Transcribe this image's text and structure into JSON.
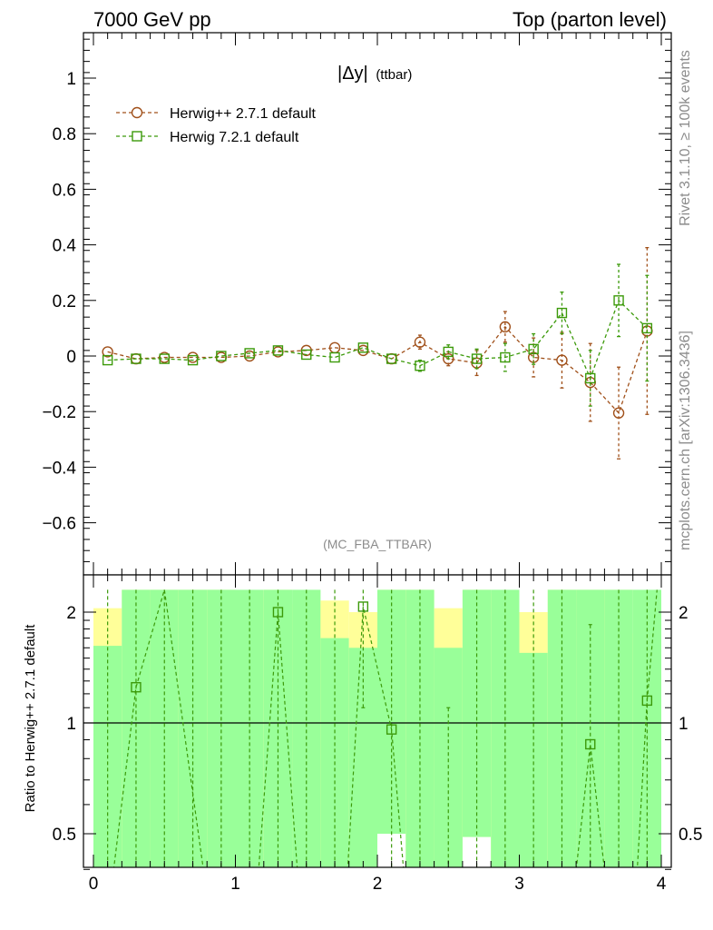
{
  "header": {
    "left": "7000 GeV pp",
    "right": "Top (parton level)"
  },
  "side": {
    "upper": "Rivet 3.1.10, ≥ 100k events",
    "lower": "mcplots.cern.ch [arXiv:1306.3436]"
  },
  "chart_data": [
    {
      "type": "scatter",
      "title_main": "|Δy|",
      "title_sub": "(ttbar)",
      "analysis_label": "(MC_FBA_TTBAR)",
      "xlim": [
        0,
        4
      ],
      "ylim": [
        -0.75,
        1.16
      ],
      "yticks": [
        -0.6,
        -0.4,
        -0.2,
        0,
        0.2,
        0.4,
        0.6,
        0.8,
        1
      ],
      "ytick_labels": [
        "−0.6",
        "−0.4",
        "−0.2",
        "0",
        "0.2",
        "0.4",
        "0.6",
        "0.8",
        "1"
      ],
      "legend_position": "top-left",
      "series": [
        {
          "name": "Herwig++ 2.7.1 default",
          "color": "#a0501a",
          "marker": "circle",
          "x": [
            0.1,
            0.3,
            0.5,
            0.7,
            0.9,
            1.1,
            1.3,
            1.5,
            1.7,
            1.9,
            2.1,
            2.3,
            2.5,
            2.7,
            2.9,
            3.1,
            3.3,
            3.5,
            3.7,
            3.9
          ],
          "y": [
            0.015,
            -0.01,
            -0.005,
            -0.005,
            -0.005,
            0,
            0.015,
            0.02,
            0.03,
            0.02,
            -0.01,
            0.05,
            -0.01,
            -0.025,
            0.105,
            -0.005,
            -0.015,
            -0.095,
            -0.205,
            0.09
          ],
          "err": [
            0.008,
            0.008,
            0.008,
            0.008,
            0.008,
            0.008,
            0.01,
            0.01,
            0.012,
            0.012,
            0.015,
            0.025,
            0.025,
            0.045,
            0.055,
            0.07,
            0.1,
            0.14,
            0.165,
            0.3
          ]
        },
        {
          "name": "Herwig 7.2.1 default",
          "color": "#3c9a0a",
          "marker": "square",
          "x": [
            0.1,
            0.3,
            0.5,
            0.7,
            0.9,
            1.1,
            1.3,
            1.5,
            1.7,
            1.9,
            2.1,
            2.3,
            2.5,
            2.7,
            2.9,
            3.1,
            3.3,
            3.5,
            3.7,
            3.9
          ],
          "y": [
            -0.015,
            -0.01,
            -0.01,
            -0.015,
            0,
            0.01,
            0.02,
            0.005,
            -0.005,
            0.03,
            -0.01,
            -0.035,
            0.015,
            -0.01,
            -0.005,
            0.025,
            0.155,
            -0.08,
            0.2,
            0.1
          ],
          "err": [
            0.008,
            0.008,
            0.008,
            0.008,
            0.008,
            0.008,
            0.01,
            0.01,
            0.012,
            0.012,
            0.015,
            0.02,
            0.025,
            0.035,
            0.05,
            0.055,
            0.075,
            0.1,
            0.13,
            0.19
          ]
        }
      ]
    },
    {
      "type": "scatter",
      "ylabel": "Ratio to Herwig++ 2.7.1 default",
      "ylim": [
        0.34,
        2.3
      ],
      "yscale": "log",
      "yticks": [
        0.5,
        1,
        2
      ],
      "ytick_labels": [
        "0.5",
        "1",
        "2"
      ],
      "xticks": [
        0,
        1,
        2,
        3,
        4
      ],
      "xtick_labels": [
        "0",
        "1",
        "2",
        "3",
        "4"
      ],
      "reference_line": 1,
      "bands": {
        "x_edges": [
          0.0,
          0.2,
          0.4,
          0.6,
          0.8,
          1.0,
          1.2,
          1.4,
          1.6,
          1.8,
          2.0,
          2.2,
          2.4,
          2.6,
          2.8,
          3.0,
          3.2,
          3.4,
          3.6,
          3.8,
          4.0
        ],
        "green_low": [
          0.34,
          0.34,
          0.34,
          0.34,
          0.34,
          0.34,
          0.34,
          0.34,
          0.34,
          0.34,
          0.34,
          0.34,
          0.34,
          0.34,
          0.34,
          0.34,
          0.34,
          0.34,
          0.34,
          0.34
        ],
        "green_high": [
          1.62,
          2.3,
          2.3,
          2.3,
          2.3,
          2.3,
          2.3,
          2.3,
          1.7,
          1.6,
          2.3,
          2.3,
          1.6,
          2.3,
          2.3,
          1.55,
          2.3,
          2.3,
          2.3,
          2.3
        ],
        "yellow_low": [
          0.34,
          0.4,
          0.34,
          0.34,
          0.34,
          0.34,
          0.34,
          0.34,
          0.34,
          0.34,
          0.5,
          0.34,
          0.34,
          0.49,
          0.34,
          0.34,
          0.34,
          0.34,
          0.34,
          0.34
        ],
        "yellow_high": [
          2.05,
          2.3,
          2.3,
          2.3,
          2.3,
          2.2,
          2.3,
          2.1,
          2.15,
          2.0,
          2.3,
          2.3,
          2.05,
          2.3,
          2.25,
          2.0,
          2.3,
          2.3,
          2.3,
          1.75
        ],
        "green_color": "#99ff99",
        "yellow_color": "#ffff99"
      },
      "series": [
        {
          "name": "Herwig 7.2.1 default",
          "color": "#3c9a0a",
          "points": [
            {
              "x": 0.3,
              "y": 1.25,
              "lo": 0.34,
              "hi": 2.3
            },
            {
              "x": 1.3,
              "y": 2.0,
              "lo": 0.34,
              "hi": 2.3
            },
            {
              "x": 1.9,
              "y": 2.07,
              "lo": 1.1,
              "hi": 2.3
            },
            {
              "x": 2.1,
              "y": 0.96,
              "lo": 0.34,
              "hi": 2.3
            },
            {
              "x": 3.5,
              "y": 0.875,
              "lo": 0.34,
              "hi": 1.85
            },
            {
              "x": 3.9,
              "y": 1.15,
              "lo": 0.34,
              "hi": 2.3
            }
          ],
          "dashed_errors": [
            {
              "x": 0.1,
              "lo": 0.34,
              "hi": 2.3
            },
            {
              "x": 0.5,
              "lo": 0.34,
              "hi": 2.3
            },
            {
              "x": 0.7,
              "lo": 0.34,
              "hi": 2.3
            },
            {
              "x": 0.9,
              "lo": 0.34,
              "hi": 2.3
            },
            {
              "x": 1.1,
              "lo": 0.34,
              "hi": 2.3
            },
            {
              "x": 1.5,
              "lo": 0.34,
              "hi": 2.3
            },
            {
              "x": 1.7,
              "lo": 0.34,
              "hi": 2.3
            },
            {
              "x": 2.3,
              "lo": 0.34,
              "hi": 2.3
            },
            {
              "x": 2.5,
              "lo": 0.34,
              "hi": 1.1
            },
            {
              "x": 2.7,
              "lo": 0.34,
              "hi": 2.3
            },
            {
              "x": 2.9,
              "lo": 0.34,
              "hi": 2.3
            },
            {
              "x": 3.1,
              "lo": 0.34,
              "hi": 2.3
            },
            {
              "x": 3.3,
              "lo": 0.34,
              "hi": 2.3
            },
            {
              "x": 3.7,
              "lo": 0.34,
              "hi": 2.3
            }
          ],
          "connecting_line": [
            [
              0.12,
              0.34
            ],
            [
              0.3,
              1.25
            ],
            [
              0.5,
              2.3
            ],
            [
              0.8,
              0.34
            ],
            [
              1.15,
              0.34
            ],
            [
              1.3,
              2.0
            ],
            [
              1.45,
              0.34
            ],
            [
              1.78,
              0.34
            ],
            [
              1.9,
              2.07
            ],
            [
              2.1,
              0.96
            ],
            [
              2.2,
              0.34
            ],
            [
              3.38,
              0.34
            ],
            [
              3.5,
              0.875
            ],
            [
              3.62,
              0.34
            ],
            [
              3.82,
              0.34
            ],
            [
              3.9,
              1.15
            ],
            [
              3.97,
              2.3
            ]
          ]
        }
      ]
    }
  ]
}
